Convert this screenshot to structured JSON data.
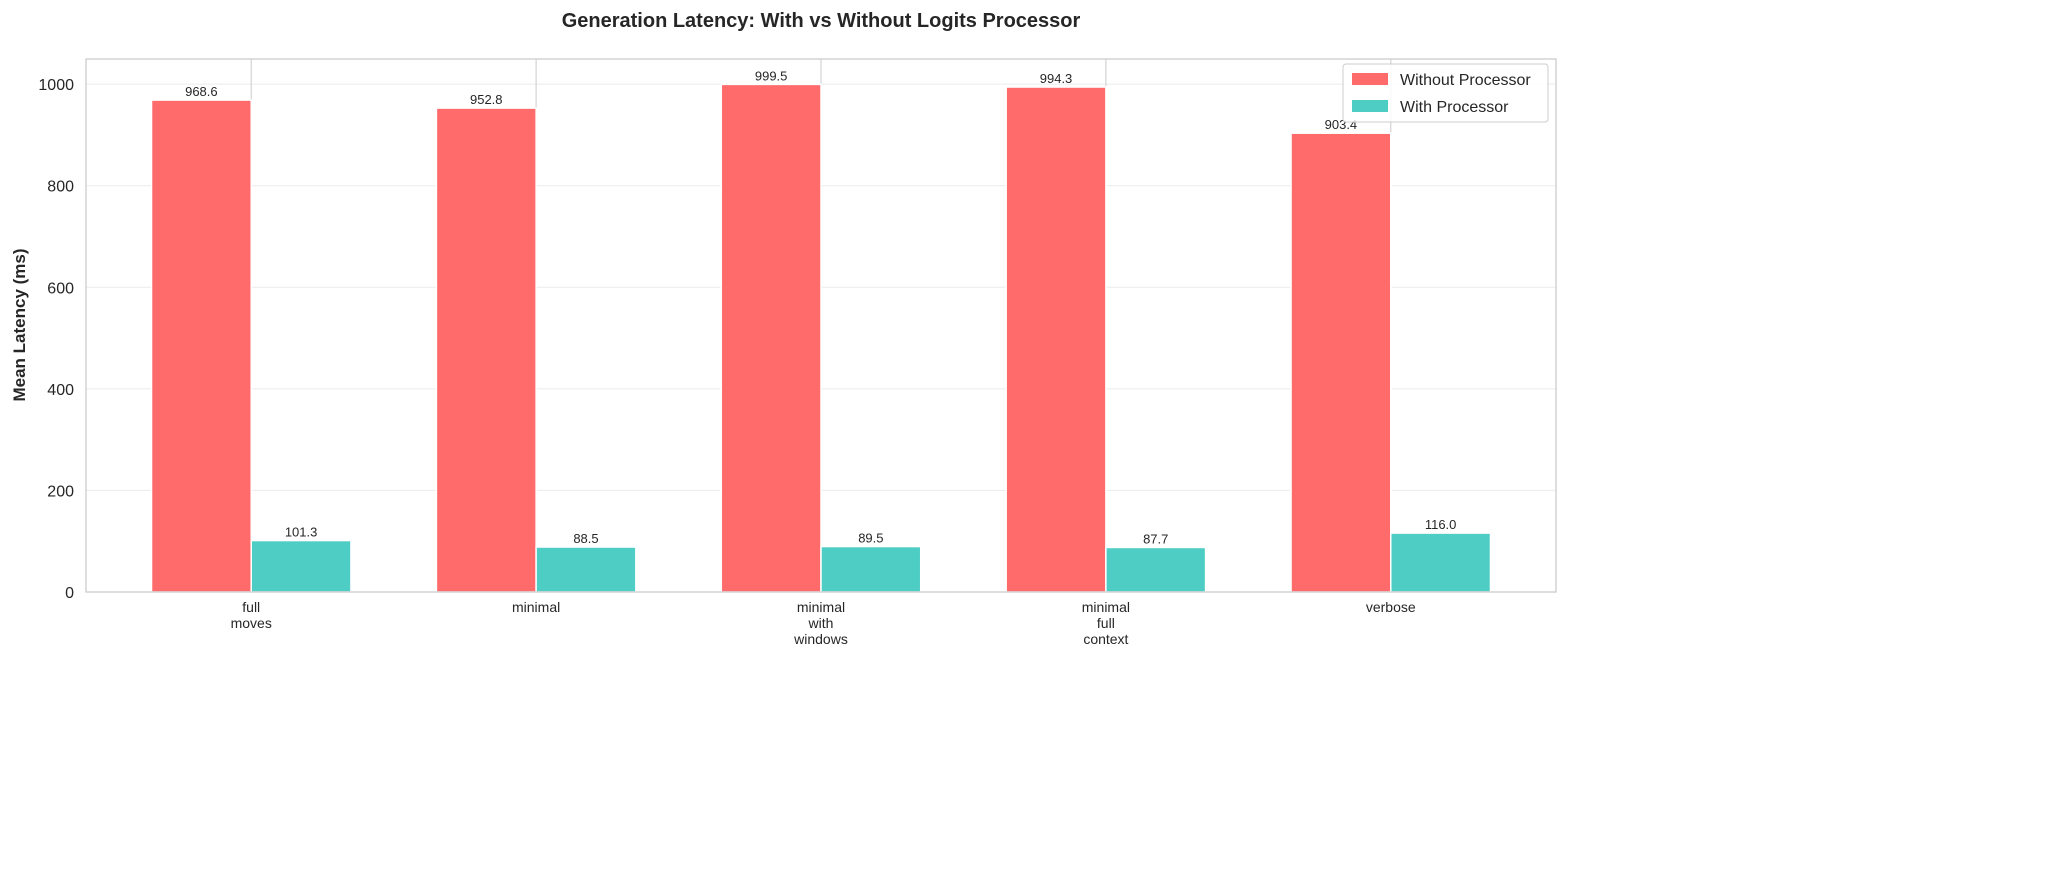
{
  "chart_data": {
    "type": "bar",
    "title": "Generation Latency: With vs Without Logits Processor",
    "xlabel": "",
    "ylabel": "Mean Latency (ms)",
    "categories": [
      [
        "full",
        "moves"
      ],
      [
        "minimal"
      ],
      [
        "minimal",
        "with",
        "windows"
      ],
      [
        "minimal",
        "full",
        "context"
      ],
      [
        "verbose"
      ]
    ],
    "series": [
      {
        "name": "Without Processor",
        "color": "#FF6B6B",
        "values": [
          968.6,
          952.8,
          999.5,
          994.3,
          903.4
        ],
        "labels": [
          "968.6",
          "952.8",
          "999.5",
          "994.3",
          "903.4"
        ]
      },
      {
        "name": "With Processor",
        "color": "#4ECDC4",
        "values": [
          101.3,
          88.5,
          89.5,
          87.7,
          116.0
        ],
        "labels": [
          "101.3",
          "88.5",
          "89.5",
          "87.7",
          "116.0"
        ]
      }
    ],
    "ylim": [
      0,
      1049.5
    ],
    "yticks": [
      0,
      200,
      400,
      600,
      800,
      1000
    ],
    "grid": true,
    "legend": "top-right"
  }
}
